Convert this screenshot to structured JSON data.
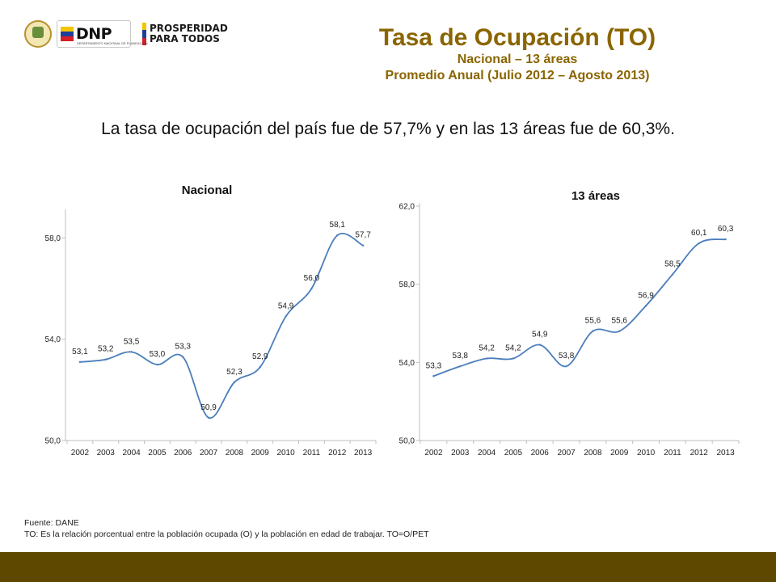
{
  "logos": {
    "dnp_text": "DNP",
    "dnp_subtext": "DEPARTAMENTO NACIONAL DE PLANEACIÓN",
    "prosperidad_line1": "PROSPERIDAD",
    "prosperidad_line2": "PARA TODOS"
  },
  "header": {
    "title": "Tasa de Ocupación (TO)",
    "subtitle1": "Nacional – 13 áreas",
    "subtitle2": "Promedio Anual (Julio 2012 – Agosto 2013)"
  },
  "summary": "La tasa de ocupación del país fue de 57,7% y en las 13 áreas fue de 60,3%.",
  "colors": {
    "title": "#8a6500",
    "line": "#4a7ebb",
    "footer": "#5e4800"
  },
  "chart_data": [
    {
      "type": "line",
      "title": "Nacional",
      "x": [
        "2002",
        "2003",
        "2004",
        "2005",
        "2006",
        "2007",
        "2008",
        "2009",
        "2010",
        "2011",
        "2012",
        "2013"
      ],
      "series": [
        {
          "values": [
            53.1,
            53.2,
            53.5,
            53.0,
            53.3,
            50.9,
            52.3,
            52.9,
            54.9,
            56.0,
            58.1,
            57.7
          ]
        }
      ],
      "data_labels": [
        "53,1",
        "53,2",
        "53,5",
        "53,0",
        "53,3",
        "50,9",
        "52,3",
        "52,9",
        "54,9",
        "56,0",
        "58,1",
        "57,7"
      ],
      "ylim": [
        50.0,
        59.0
      ],
      "yticks": [
        50.0,
        54.0,
        58.0
      ],
      "ytick_labels": [
        "50,0",
        "54,0",
        "58,0"
      ],
      "grid": false
    },
    {
      "type": "line",
      "title": "13 áreas",
      "x": [
        "2002",
        "2003",
        "2004",
        "2005",
        "2006",
        "2007",
        "2008",
        "2009",
        "2010",
        "2011",
        "2012",
        "2013"
      ],
      "series": [
        {
          "values": [
            53.3,
            53.8,
            54.2,
            54.2,
            54.9,
            53.8,
            55.6,
            55.6,
            56.9,
            58.5,
            60.1,
            60.3
          ]
        }
      ],
      "data_labels": [
        "53,3",
        "53,8",
        "54,2",
        "54,2",
        "54,9",
        "53,8",
        "55,6",
        "55,6",
        "56,9",
        "58,5",
        "60,1",
        "60,3"
      ],
      "ylim": [
        50.0,
        62.0
      ],
      "yticks": [
        50.0,
        54.0,
        58.0,
        62.0
      ],
      "ytick_labels": [
        "50,0",
        "54,0",
        "58,0",
        "62,0"
      ],
      "grid": false
    }
  ],
  "footnote": {
    "source": "Fuente: DANE",
    "definition": "TO: Es la relación porcentual entre la población ocupada (O) y la población  en edad de trabajar. TO=O/PET"
  }
}
